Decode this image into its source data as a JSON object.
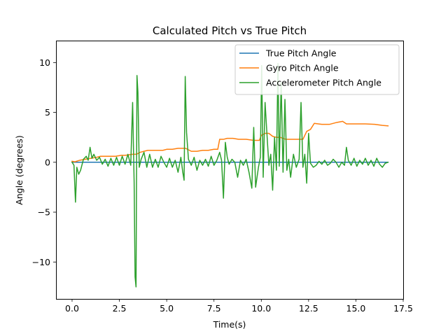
{
  "chart_data": {
    "type": "line",
    "title": "Calculated Pitch vs True Pitch",
    "xlabel": "Time(s)",
    "ylabel": "Angle (degrees)",
    "xlim": [
      -0.85,
      17.5
    ],
    "ylim": [
      -13.7,
      12.2
    ],
    "xticks": [
      0.0,
      2.5,
      5.0,
      7.5,
      10.0,
      12.5,
      15.0,
      17.5
    ],
    "xtick_labels": [
      "0.0",
      "2.5",
      "5.0",
      "7.5",
      "10.0",
      "12.5",
      "15.0",
      "17.5"
    ],
    "yticks": [
      -10,
      -5,
      0,
      5,
      10
    ],
    "ytick_labels": [
      "−10",
      "−5",
      "0",
      "5",
      "10"
    ],
    "grid": false,
    "legend_position": "top-right",
    "series": [
      {
        "name": "True Pitch Angle",
        "color": "#1f77b4",
        "x": [
          0.0,
          16.7
        ],
        "y": [
          0.0,
          0.0
        ]
      },
      {
        "name": "Gyro Pitch Angle",
        "color": "#ff7f0e",
        "x": [
          0.0,
          0.15,
          0.4,
          0.7,
          1.0,
          1.3,
          1.5,
          1.7,
          2.0,
          2.3,
          2.6,
          2.8,
          3.0,
          3.2,
          3.4,
          3.6,
          3.8,
          4.0,
          4.2,
          4.5,
          4.8,
          5.0,
          5.3,
          5.6,
          5.8,
          6.0,
          6.3,
          6.6,
          6.9,
          7.2,
          7.5,
          7.7,
          7.8,
          8.0,
          8.2,
          8.5,
          8.8,
          9.2,
          9.6,
          9.9,
          10.0,
          10.2,
          10.4,
          10.6,
          10.8,
          11.0,
          11.3,
          11.6,
          11.9,
          12.2,
          12.4,
          12.6,
          12.8,
          13.2,
          13.6,
          14.0,
          14.3,
          14.5,
          15.0,
          15.5,
          16.0,
          16.4,
          16.7
        ],
        "y": [
          0.1,
          0.05,
          0.2,
          0.3,
          0.4,
          0.5,
          0.6,
          0.6,
          0.6,
          0.6,
          0.7,
          0.7,
          0.75,
          0.8,
          0.8,
          1.0,
          1.1,
          1.2,
          1.2,
          1.2,
          1.2,
          1.3,
          1.3,
          1.4,
          1.4,
          1.4,
          1.1,
          1.1,
          1.2,
          1.2,
          1.3,
          1.3,
          2.3,
          2.3,
          2.4,
          2.4,
          2.3,
          2.3,
          2.2,
          2.2,
          2.7,
          2.9,
          2.9,
          2.6,
          2.5,
          2.5,
          2.3,
          2.3,
          2.3,
          2.3,
          3.1,
          3.3,
          3.9,
          3.8,
          3.8,
          4.0,
          4.1,
          3.85,
          3.85,
          3.85,
          3.8,
          3.7,
          3.65
        ]
      },
      {
        "name": "Accelerometer Pitch Angle",
        "color": "#2ca02c",
        "x": [
          0.0,
          0.1,
          0.18,
          0.25,
          0.35,
          0.45,
          0.6,
          0.75,
          0.85,
          0.95,
          1.05,
          1.15,
          1.3,
          1.45,
          1.6,
          1.75,
          1.9,
          2.05,
          2.2,
          2.35,
          2.5,
          2.65,
          2.8,
          2.95,
          3.1,
          3.2,
          3.28,
          3.33,
          3.38,
          3.43,
          3.48,
          3.55,
          3.65,
          3.8,
          3.95,
          4.1,
          4.25,
          4.4,
          4.55,
          4.7,
          4.85,
          5.0,
          5.15,
          5.3,
          5.45,
          5.6,
          5.75,
          5.85,
          5.92,
          5.98,
          6.05,
          6.15,
          6.3,
          6.45,
          6.6,
          6.75,
          6.9,
          7.05,
          7.2,
          7.35,
          7.5,
          7.65,
          7.8,
          7.9,
          8.0,
          8.1,
          8.2,
          8.3,
          8.45,
          8.6,
          8.75,
          8.9,
          9.05,
          9.2,
          9.35,
          9.5,
          9.6,
          9.7,
          9.85,
          9.95,
          10.02,
          10.1,
          10.2,
          10.3,
          10.4,
          10.5,
          10.6,
          10.7,
          10.8,
          10.88,
          10.95,
          11.05,
          11.15,
          11.25,
          11.35,
          11.45,
          11.55,
          11.7,
          11.85,
          12.0,
          12.1,
          12.2,
          12.3,
          12.4,
          12.5,
          12.6,
          12.75,
          12.9,
          13.05,
          13.2,
          13.35,
          13.5,
          13.65,
          13.8,
          13.95,
          14.1,
          14.25,
          14.4,
          14.5,
          14.6,
          14.75,
          14.9,
          15.05,
          15.2,
          15.35,
          15.5,
          15.65,
          15.8,
          15.95,
          16.1,
          16.25,
          16.4,
          16.55,
          16.7
        ],
        "y": [
          0.0,
          -0.3,
          -4.0,
          -0.5,
          -1.2,
          -0.8,
          0.3,
          0.6,
          0.2,
          1.5,
          0.4,
          0.8,
          0.2,
          0.5,
          -0.2,
          0.3,
          -0.4,
          0.4,
          -0.3,
          0.5,
          -0.3,
          0.6,
          -0.2,
          0.8,
          -0.3,
          6.0,
          -2.0,
          -11.5,
          -12.5,
          8.7,
          7.0,
          -0.5,
          0.3,
          1.0,
          -0.5,
          0.8,
          -0.5,
          0.3,
          -0.5,
          0.6,
          0.0,
          -0.5,
          0.4,
          -0.5,
          0.2,
          -1.0,
          0.5,
          -1.0,
          -1.8,
          8.6,
          3.0,
          0.3,
          -0.3,
          0.5,
          -0.8,
          0.2,
          -0.3,
          0.3,
          -0.4,
          0.6,
          -0.3,
          0.2,
          1.0,
          0.2,
          -3.6,
          2.0,
          0.5,
          -0.2,
          0.3,
          0.0,
          -1.5,
          0.2,
          -0.3,
          0.3,
          -1.0,
          -2.6,
          3.5,
          -2.5,
          -0.5,
          0.5,
          9.7,
          -1.5,
          6.0,
          2.8,
          -0.3,
          0.8,
          -2.8,
          2.5,
          -0.8,
          9.9,
          -0.4,
          8.0,
          -1.0,
          6.3,
          -0.8,
          0.3,
          -1.5,
          0.8,
          -0.5,
          0.3,
          6.0,
          -0.5,
          0.8,
          -2.1,
          2.9,
          -0.1,
          -0.5,
          -0.3,
          0.1,
          -0.2,
          0.2,
          -0.3,
          -0.1,
          0.3,
          0.0,
          -0.5,
          0.0,
          -0.3,
          1.5,
          0.2,
          -0.3,
          0.4,
          -0.4,
          0.2,
          -0.2,
          0.4,
          -0.3,
          0.2,
          -0.4,
          0.4,
          -0.2,
          -0.5,
          -0.1,
          0.0
        ]
      }
    ]
  }
}
